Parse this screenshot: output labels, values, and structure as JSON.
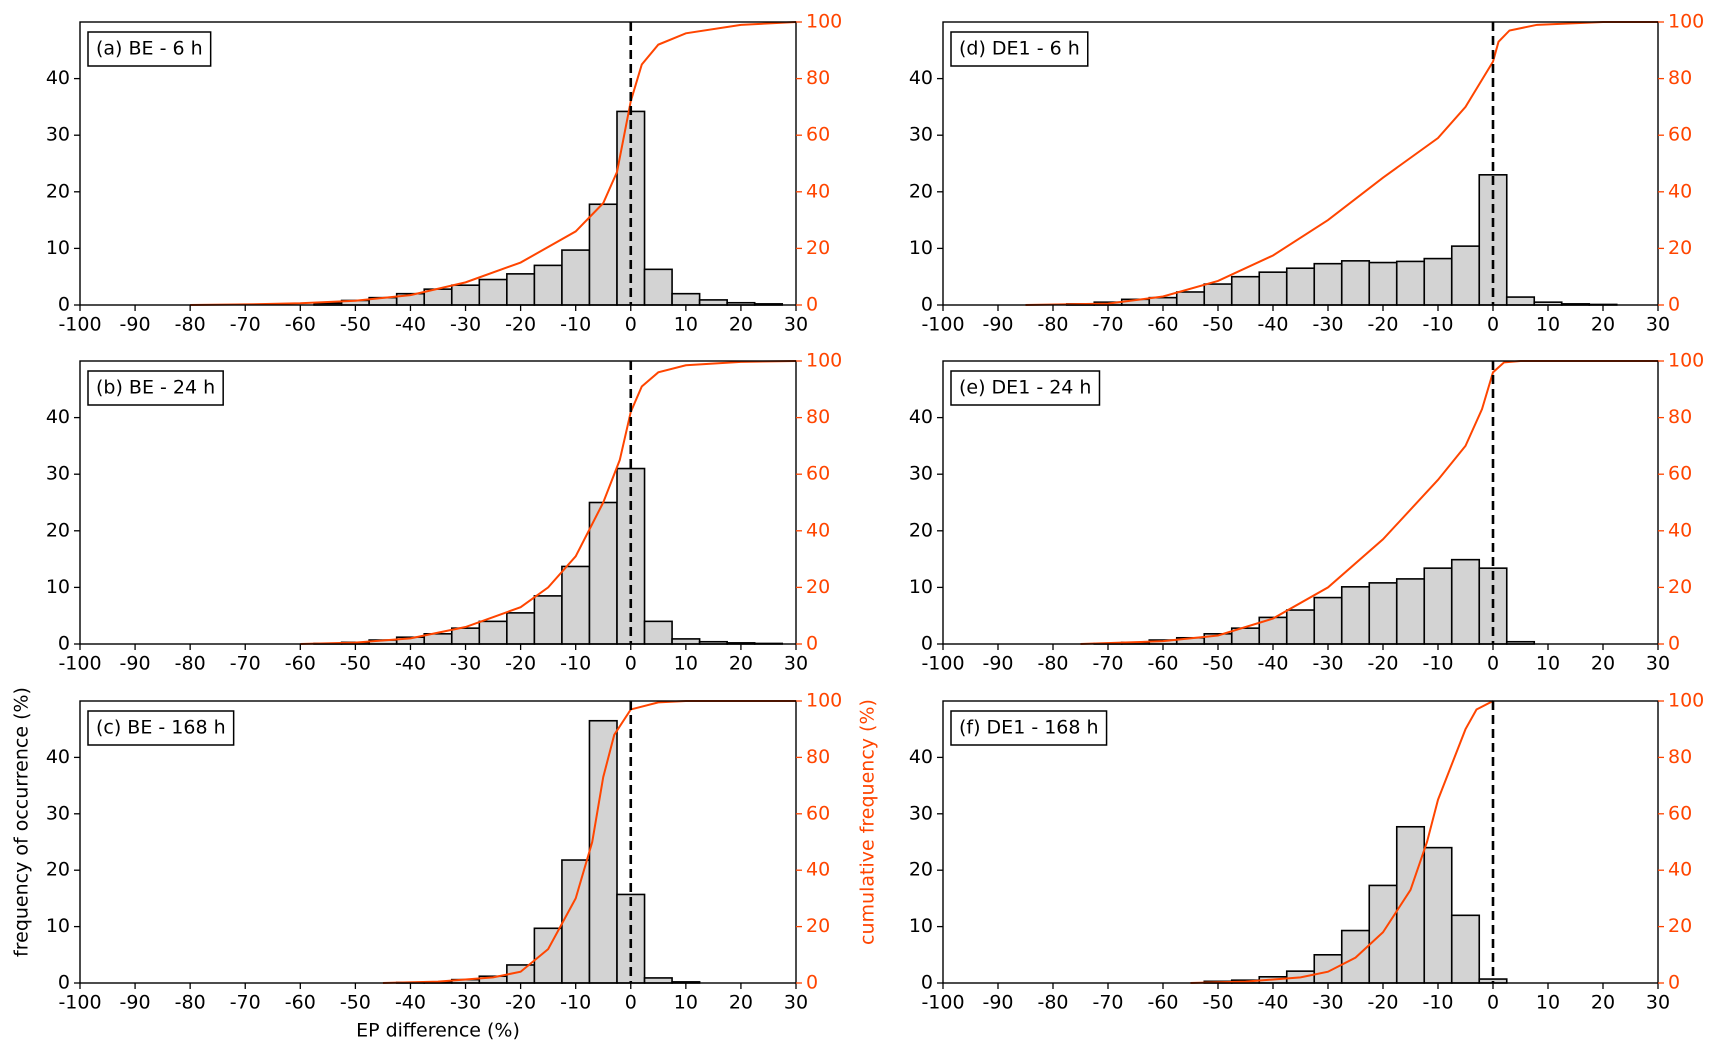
{
  "chart_data": [
    {
      "type": "histogram",
      "title": "(a) BE - 6 h",
      "bins": [
        -57.5,
        -52.5,
        -47.5,
        -42.5,
        -37.5,
        -32.5,
        -27.5,
        -22.5,
        -17.5,
        -12.5,
        -7.5,
        -2.5,
        2.5,
        7.5,
        12.5,
        17.5,
        22.5,
        27.5
      ],
      "counts": [
        0.3,
        0.8,
        1.3,
        2,
        2.8,
        3.5,
        4.5,
        5.5,
        7,
        9.7,
        17.8,
        34.2,
        6.3,
        2,
        0.9,
        0.4,
        0.2
      ],
      "color": "#d3d3d3",
      "edgecolor": "#000000",
      "line": {
        "axis": "y2",
        "color": "#ff4500",
        "x": [
          -80,
          -70,
          -60,
          -50,
          -40,
          -30,
          -20,
          -10,
          -5,
          -2.5,
          0,
          2,
          5,
          10,
          20,
          30
        ],
        "values": [
          0,
          0.2,
          0.6,
          1.5,
          3.5,
          8,
          15,
          26,
          36,
          47,
          72,
          85,
          92,
          96,
          99,
          100
        ]
      },
      "vline": 0,
      "xlim": [
        -100,
        30
      ],
      "ylim": [
        0,
        50
      ],
      "y2lim": [
        0,
        100
      ],
      "xticks": [
        -100,
        -90,
        -80,
        -70,
        -60,
        -50,
        -40,
        -30,
        -20,
        -10,
        0,
        10,
        20,
        30
      ],
      "yticks": [
        0,
        10,
        20,
        30,
        40
      ],
      "y2ticks": [
        0,
        20,
        40,
        60,
        80,
        100
      ]
    },
    {
      "type": "histogram",
      "title": "(b) BE - 24 h",
      "bins": [
        -57.5,
        -52.5,
        -47.5,
        -42.5,
        -37.5,
        -32.5,
        -27.5,
        -22.5,
        -17.5,
        -12.5,
        -7.5,
        -2.5,
        2.5,
        7.5,
        12.5,
        17.5,
        22.5,
        27.5
      ],
      "counts": [
        0.1,
        0.3,
        0.7,
        1.2,
        1.8,
        2.8,
        4,
        5.5,
        8.5,
        13.7,
        25,
        31,
        4,
        0.9,
        0.4,
        0.2,
        0.1
      ],
      "color": "#d3d3d3",
      "edgecolor": "#000000",
      "line": {
        "axis": "y2",
        "color": "#ff4500",
        "x": [
          -60,
          -50,
          -40,
          -30,
          -20,
          -15,
          -10,
          -5,
          -2,
          0,
          2,
          5,
          10,
          20,
          30
        ],
        "values": [
          0,
          0.5,
          2,
          6,
          13,
          20,
          31,
          50,
          65,
          82,
          91,
          96,
          98.5,
          99.7,
          100
        ]
      },
      "vline": 0,
      "xlim": [
        -100,
        30
      ],
      "ylim": [
        0,
        50
      ],
      "y2lim": [
        0,
        100
      ],
      "xticks": [
        -100,
        -90,
        -80,
        -70,
        -60,
        -50,
        -40,
        -30,
        -20,
        -10,
        0,
        10,
        20,
        30
      ],
      "yticks": [
        0,
        10,
        20,
        30,
        40
      ],
      "y2ticks": [
        0,
        20,
        40,
        60,
        80,
        100
      ]
    },
    {
      "type": "histogram",
      "title": "(c) BE - 168 h",
      "xlabel": "EP difference (%)",
      "ylabel": "frequency of occurrence (%)",
      "y2label": "cumulative frequency (%)",
      "bins": [
        -42.5,
        -37.5,
        -32.5,
        -27.5,
        -22.5,
        -17.5,
        -12.5,
        -7.5,
        -2.5,
        2.5,
        7.5,
        12.5
      ],
      "counts": [
        0.1,
        0.2,
        0.6,
        1.2,
        3.2,
        9.7,
        21.8,
        46.5,
        15.7,
        0.9,
        0.2
      ],
      "color": "#d3d3d3",
      "edgecolor": "#000000",
      "line": {
        "axis": "y2",
        "color": "#ff4500",
        "x": [
          -45,
          -35,
          -25,
          -20,
          -15,
          -10,
          -7,
          -5,
          -3,
          0,
          5,
          10,
          20,
          30
        ],
        "values": [
          0,
          0.5,
          2,
          4,
          12,
          30,
          50,
          73,
          88,
          97,
          99.5,
          100,
          100,
          100
        ]
      },
      "vline": 0,
      "xlim": [
        -100,
        30
      ],
      "ylim": [
        0,
        50
      ],
      "y2lim": [
        0,
        100
      ],
      "xticks": [
        -100,
        -90,
        -80,
        -70,
        -60,
        -50,
        -40,
        -30,
        -20,
        -10,
        0,
        10,
        20,
        30
      ],
      "yticks": [
        0,
        10,
        20,
        30,
        40
      ],
      "y2ticks": [
        0,
        20,
        40,
        60,
        80,
        100
      ]
    },
    {
      "type": "histogram",
      "title": "(d) DE1 - 6 h",
      "bins": [
        -77.5,
        -72.5,
        -67.5,
        -62.5,
        -57.5,
        -52.5,
        -47.5,
        -42.5,
        -37.5,
        -32.5,
        -27.5,
        -22.5,
        -17.5,
        -12.5,
        -7.5,
        -2.5,
        2.5,
        7.5,
        12.5,
        17.5,
        22.5
      ],
      "counts": [
        0.2,
        0.5,
        1,
        1.3,
        2.3,
        3.7,
        5,
        5.8,
        6.5,
        7.3,
        7.8,
        7.5,
        7.7,
        8.2,
        10.4,
        23,
        1.4,
        0.5,
        0.2,
        0.1
      ],
      "color": "#d3d3d3",
      "edgecolor": "#000000",
      "line": {
        "axis": "y2",
        "color": "#ff4500",
        "x": [
          -85,
          -70,
          -60,
          -50,
          -40,
          -30,
          -20,
          -10,
          -5,
          0,
          1,
          3,
          8,
          20,
          30
        ],
        "values": [
          0,
          0.5,
          3,
          8.5,
          17.5,
          30,
          45,
          59,
          70,
          86,
          93,
          97,
          99,
          100,
          100
        ]
      },
      "vline": 0,
      "xlim": [
        -100,
        30
      ],
      "ylim": [
        0,
        50
      ],
      "y2lim": [
        0,
        100
      ],
      "xticks": [
        -100,
        -90,
        -80,
        -70,
        -60,
        -50,
        -40,
        -30,
        -20,
        -10,
        0,
        10,
        20,
        30
      ],
      "yticks": [
        0,
        10,
        20,
        30,
        40
      ],
      "y2ticks": [
        0,
        20,
        40,
        60,
        80,
        100
      ]
    },
    {
      "type": "histogram",
      "title": "(e) DE1 - 24 h",
      "bins": [
        -72.5,
        -67.5,
        -62.5,
        -57.5,
        -52.5,
        -47.5,
        -42.5,
        -37.5,
        -32.5,
        -27.5,
        -22.5,
        -17.5,
        -12.5,
        -7.5,
        -2.5,
        2.5,
        7.5
      ],
      "counts": [
        0.1,
        0.3,
        0.7,
        1.1,
        1.8,
        2.8,
        4.7,
        6,
        8.2,
        10.1,
        10.8,
        11.5,
        13.4,
        14.9,
        13.4,
        0.4
      ],
      "color": "#d3d3d3",
      "edgecolor": "#000000",
      "line": {
        "axis": "y2",
        "color": "#ff4500",
        "x": [
          -75,
          -60,
          -50,
          -40,
          -30,
          -20,
          -10,
          -5,
          -2,
          0,
          2,
          5,
          30
        ],
        "values": [
          0,
          1,
          3,
          9,
          20,
          37,
          58,
          70,
          83,
          96,
          99.5,
          100,
          100
        ]
      },
      "vline": 0,
      "xlim": [
        -100,
        30
      ],
      "ylim": [
        0,
        50
      ],
      "y2lim": [
        0,
        100
      ],
      "xticks": [
        -100,
        -90,
        -80,
        -70,
        -60,
        -50,
        -40,
        -30,
        -20,
        -10,
        0,
        10,
        20,
        30
      ],
      "yticks": [
        0,
        10,
        20,
        30,
        40
      ],
      "y2ticks": [
        0,
        20,
        40,
        60,
        80,
        100
      ]
    },
    {
      "type": "histogram",
      "title": "(f) DE1 - 168 h",
      "bins": [
        -52.5,
        -47.5,
        -42.5,
        -37.5,
        -32.5,
        -27.5,
        -22.5,
        -17.5,
        -12.5,
        -7.5,
        -2.5,
        2.5
      ],
      "counts": [
        0.3,
        0.5,
        1.1,
        2.1,
        5,
        9.3,
        17.3,
        27.7,
        24,
        12,
        0.7
      ],
      "color": "#d3d3d3",
      "edgecolor": "#000000",
      "line": {
        "axis": "y2",
        "color": "#ff4500",
        "x": [
          -55,
          -45,
          -35,
          -30,
          -25,
          -20,
          -15,
          -12,
          -10,
          -7,
          -5,
          -3,
          0
        ],
        "values": [
          0,
          0.5,
          2,
          4,
          9,
          18,
          33,
          50,
          65,
          80,
          90,
          97,
          100
        ]
      },
      "vline": 0,
      "xlim": [
        -100,
        30
      ],
      "ylim": [
        0,
        50
      ],
      "y2lim": [
        0,
        100
      ],
      "xticks": [
        -100,
        -90,
        -80,
        -70,
        -60,
        -50,
        -40,
        -30,
        -20,
        -10,
        0,
        10,
        20,
        30
      ],
      "yticks": [
        0,
        10,
        20,
        30,
        40
      ],
      "y2ticks": [
        0,
        20,
        40,
        60,
        80,
        100
      ]
    }
  ]
}
